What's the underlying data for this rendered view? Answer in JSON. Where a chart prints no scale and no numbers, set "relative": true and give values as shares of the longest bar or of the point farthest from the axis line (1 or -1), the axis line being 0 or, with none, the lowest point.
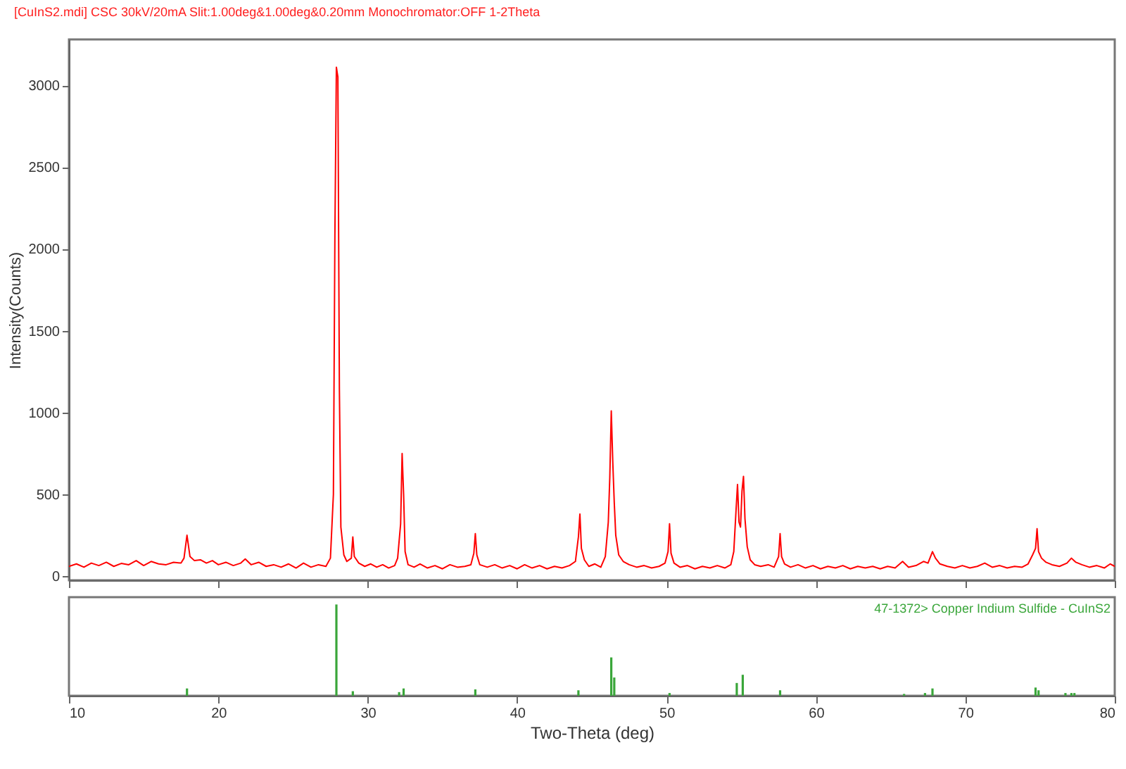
{
  "chart_data": [
    {
      "type": "line",
      "title": "[CuInS2.mdi] CSC 30kV/20mA Slit:1.00deg&1.00deg&0.20mm Monochromator:OFF 1-2Theta",
      "ylabel": "Intensity(Counts)",
      "xlim": [
        10,
        80
      ],
      "xticks": [
        10,
        20,
        30,
        40,
        50,
        60,
        70,
        80
      ],
      "ylim": [
        -25,
        3280
      ],
      "yticks": [
        0,
        500,
        1000,
        1500,
        2000,
        2500,
        3000
      ],
      "tick_labels": "y",
      "grid": false,
      "marker": "none",
      "line_style": "solid",
      "series": [
        {
          "color": "#ff0000",
          "x": [
            10,
            10.5,
            11,
            11.5,
            12,
            12.5,
            13,
            13.5,
            14,
            14.5,
            15,
            15.5,
            16,
            16.5,
            17,
            17.5,
            17.7,
            17.9,
            18.1,
            18.4,
            18.8,
            19.2,
            19.6,
            20,
            20.5,
            21,
            21.5,
            21.8,
            22.2,
            22.7,
            23.2,
            23.7,
            24.2,
            24.7,
            25.2,
            25.7,
            26.2,
            26.7,
            27.2,
            27.5,
            27.7,
            27.8,
            27.9,
            28.0,
            28.1,
            28.2,
            28.4,
            28.6,
            28.9,
            29.0,
            29.1,
            29.4,
            29.8,
            30.2,
            30.6,
            31,
            31.4,
            31.8,
            32.0,
            32.2,
            32.3,
            32.4,
            32.5,
            32.7,
            33.1,
            33.5,
            34,
            34.5,
            35,
            35.5,
            36,
            36.5,
            36.9,
            37.1,
            37.2,
            37.3,
            37.5,
            38,
            38.5,
            39,
            39.5,
            40,
            40.5,
            41,
            41.5,
            42,
            42.5,
            43,
            43.5,
            43.9,
            44.1,
            44.2,
            44.3,
            44.5,
            44.8,
            45.2,
            45.6,
            45.9,
            46.1,
            46.2,
            46.3,
            46.4,
            46.5,
            46.6,
            46.8,
            47.1,
            47.5,
            48,
            48.5,
            49,
            49.5,
            49.9,
            50.1,
            50.2,
            50.3,
            50.5,
            50.9,
            51.4,
            51.9,
            52.4,
            52.9,
            53.4,
            53.9,
            54.3,
            54.5,
            54.65,
            54.75,
            54.85,
            54.95,
            55.05,
            55.15,
            55.25,
            55.4,
            55.6,
            55.9,
            56.3,
            56.8,
            57.2,
            57.5,
            57.6,
            57.7,
            57.9,
            58.3,
            58.8,
            59.3,
            59.8,
            60.3,
            60.8,
            61.3,
            61.8,
            62.3,
            62.8,
            63.3,
            63.8,
            64.3,
            64.8,
            65.3,
            65.8,
            66.2,
            66.7,
            67.2,
            67.5,
            67.8,
            68.0,
            68.3,
            68.8,
            69.3,
            69.8,
            70.3,
            70.8,
            71.3,
            71.8,
            72.3,
            72.8,
            73.3,
            73.8,
            74.2,
            74.5,
            74.7,
            74.8,
            74.9,
            75.1,
            75.4,
            75.8,
            76.3,
            76.8,
            77.1,
            77.4,
            77.8,
            78.3,
            78.8,
            79.3,
            79.7,
            80
          ],
          "values": [
            60,
            75,
            55,
            80,
            65,
            85,
            60,
            78,
            70,
            95,
            65,
            90,
            75,
            70,
            85,
            80,
            110,
            250,
            120,
            95,
            100,
            80,
            95,
            70,
            85,
            65,
            80,
            105,
            70,
            85,
            60,
            70,
            55,
            75,
            50,
            80,
            55,
            70,
            60,
            110,
            500,
            2080,
            3110,
            3050,
            1150,
            300,
            130,
            90,
            110,
            240,
            120,
            80,
            60,
            75,
            55,
            70,
            50,
            65,
            110,
            320,
            750,
            500,
            150,
            70,
            55,
            75,
            50,
            65,
            45,
            70,
            55,
            60,
            70,
            140,
            260,
            130,
            70,
            55,
            70,
            50,
            65,
            45,
            70,
            50,
            65,
            45,
            60,
            50,
            65,
            90,
            240,
            380,
            170,
            100,
            60,
            75,
            55,
            120,
            330,
            600,
            1010,
            700,
            450,
            250,
            130,
            90,
            70,
            55,
            65,
            50,
            60,
            80,
            150,
            320,
            140,
            80,
            55,
            65,
            45,
            60,
            50,
            65,
            50,
            70,
            150,
            400,
            560,
            330,
            300,
            520,
            610,
            350,
            180,
            100,
            70,
            60,
            70,
            55,
            120,
            260,
            120,
            75,
            55,
            70,
            50,
            65,
            45,
            60,
            50,
            65,
            45,
            60,
            50,
            60,
            45,
            60,
            50,
            90,
            55,
            65,
            90,
            80,
            150,
            110,
            75,
            60,
            50,
            65,
            50,
            60,
            80,
            55,
            65,
            50,
            60,
            55,
            75,
            130,
            170,
            290,
            150,
            110,
            85,
            70,
            60,
            80,
            110,
            85,
            70,
            55,
            65,
            50,
            75,
            60
          ]
        }
      ]
    },
    {
      "type": "bar",
      "relative": true,
      "xlabel": "Two-Theta (deg)",
      "xlim": [
        10,
        80
      ],
      "xticks": [
        10,
        20,
        30,
        40,
        50,
        60,
        70,
        80
      ],
      "annotations": [
        "47-1372> Copper Indium Sulfide - CuInS2"
      ],
      "series": [
        {
          "color": "#3aa63a",
          "x": [
            17.9,
            27.9,
            29.0,
            32.1,
            32.4,
            37.2,
            44.1,
            46.3,
            46.5,
            50.2,
            54.7,
            55.1,
            57.6,
            65.9,
            67.3,
            67.8,
            74.7,
            74.9,
            76.7,
            77.1,
            77.3
          ],
          "values": [
            0.08,
            1,
            0.05,
            0.04,
            0.08,
            0.07,
            0.06,
            0.42,
            0.2,
            0.03,
            0.14,
            0.23,
            0.06,
            0.02,
            0.03,
            0.08,
            0.09,
            0.06,
            0.03,
            0.03,
            0.03
          ]
        }
      ]
    }
  ]
}
